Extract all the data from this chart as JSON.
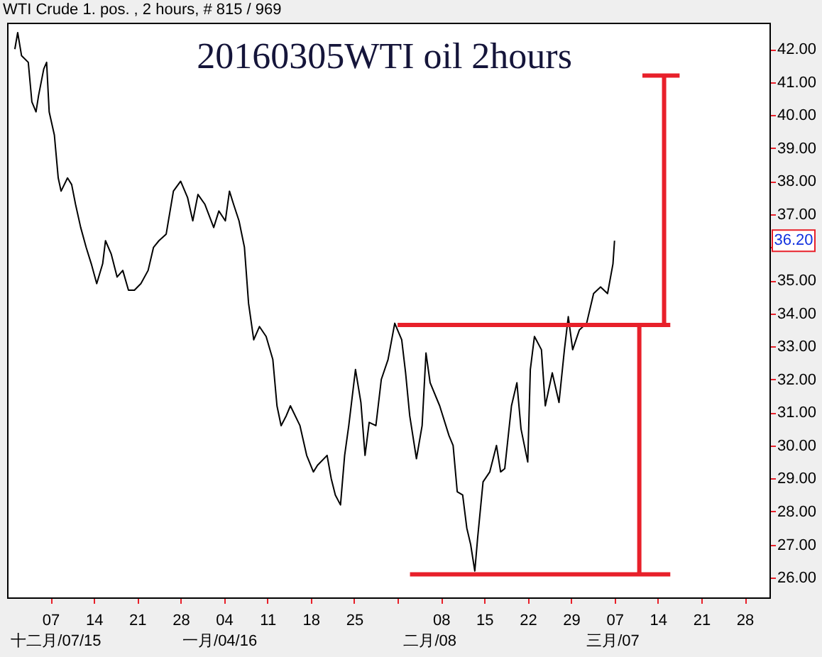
{
  "chart_data": {
    "type": "line",
    "title": "20160305WTI oil 2hours",
    "subtitle": "WTI Crude 1. pos. , 2 hours, # 815 / 969",
    "xlim": [
      "2015-11-30",
      "2016-04-01"
    ],
    "ylim": [
      25.4,
      42.8
    ],
    "xticks": [
      {
        "value": "2015-12-07",
        "label": "07"
      },
      {
        "value": "2015-12-14",
        "label": "14"
      },
      {
        "value": "2015-12-21",
        "label": "21"
      },
      {
        "value": "2015-12-28",
        "label": "28"
      },
      {
        "value": "2016-01-04",
        "label": "04"
      },
      {
        "value": "2016-01-11",
        "label": "11"
      },
      {
        "value": "2016-01-18",
        "label": "18"
      },
      {
        "value": "2016-01-25",
        "label": "25"
      },
      {
        "value": "2016-02-01",
        "label": null
      },
      {
        "value": "2016-02-08",
        "label": "08"
      },
      {
        "value": "2016-02-15",
        "label": "15"
      },
      {
        "value": "2016-02-22",
        "label": "22"
      },
      {
        "value": "2016-02-29",
        "label": "29"
      },
      {
        "value": "2016-03-07",
        "label": "07"
      },
      {
        "value": "2016-03-14",
        "label": "14"
      },
      {
        "value": "2016-03-21",
        "label": "21"
      },
      {
        "value": "2016-03-28",
        "label": "28"
      }
    ],
    "yticks": [
      {
        "value": 26,
        "label": "26.00"
      },
      {
        "value": 27,
        "label": "27.00"
      },
      {
        "value": 28,
        "label": "28.00"
      },
      {
        "value": 29,
        "label": "29.00"
      },
      {
        "value": 30,
        "label": "30.00"
      },
      {
        "value": 31,
        "label": "31.00"
      },
      {
        "value": 32,
        "label": "32.00"
      },
      {
        "value": 33,
        "label": "33.00"
      },
      {
        "value": 34,
        "label": "34.00"
      },
      {
        "value": 35,
        "label": "35.00"
      },
      {
        "value": 36,
        "label": null
      },
      {
        "value": 37,
        "label": "37.00"
      },
      {
        "value": 38,
        "label": "38.00"
      },
      {
        "value": 39,
        "label": "39.00"
      },
      {
        "value": 40,
        "label": "40.00"
      },
      {
        "value": 41,
        "label": "41.00"
      },
      {
        "value": 42,
        "label": "42.00"
      }
    ],
    "marker": "none",
    "line_style": "solid",
    "annotations": [
      "十二月/07/15",
      "一月/04/16",
      "二月/08",
      "三月/07",
      {
        "text": "36.20",
        "y": 36.2
      }
    ],
    "series": [
      {
        "color": "#000000",
        "x": [
          "2015-12-01T06:00",
          "2015-12-01T17:00",
          "2015-12-02T08:00",
          "2015-12-03T10:00",
          "2015-12-04T00:00",
          "2015-12-04T16:00",
          "2015-12-05T02:00",
          "2015-12-05T22:00",
          "2015-12-06T09:00",
          "2015-12-06T19:00",
          "2015-12-07T15:00",
          "2015-12-08T06:00",
          "2015-12-08T17:00",
          "2015-12-09T18:00",
          "2015-12-10T10:00",
          "2015-12-11T01:00",
          "2015-12-11T21:00",
          "2015-12-12T18:00",
          "2015-12-13T14:00",
          "2015-12-14T11:00",
          "2015-12-15T10:00",
          "2015-12-15T21:00",
          "2015-12-16T19:00",
          "2015-12-17T18:00",
          "2015-12-18T16:00",
          "2015-12-19T14:00",
          "2015-12-20T13:00",
          "2015-12-21T14:00",
          "2015-12-22T18:00",
          "2015-12-23T15:00",
          "2015-12-24T12:00",
          "2015-12-25T16:00",
          "2015-12-26T20:00",
          "2015-12-28T00:00",
          "2015-12-29T03:00",
          "2015-12-29T23:00",
          "2015-12-30T19:00",
          "2015-12-31T22:00",
          "2016-01-02T08:00",
          "2016-01-03T04:00",
          "2016-01-04T05:00",
          "2016-01-04T21:00",
          "2016-01-05T13:00",
          "2016-01-06T10:00",
          "2016-01-07T07:00",
          "2016-01-07T23:00",
          "2016-01-08T19:00",
          "2016-01-09T17:00",
          "2016-01-10T19:00",
          "2016-01-11T21:00",
          "2016-01-12T13:00",
          "2016-01-13T05:00",
          "2016-01-14T01:00",
          "2016-01-14T17:00",
          "2016-01-16T06:00",
          "2016-01-17T08:00",
          "2016-01-18T10:00",
          "2016-01-19T02:00",
          "2016-01-20T15:00",
          "2016-01-21T07:00",
          "2016-01-21T23:00",
          "2016-01-22T19:00",
          "2016-01-23T11:00",
          "2016-01-24T03:00",
          "2016-01-25T05:00",
          "2016-01-26T02:00",
          "2016-01-26T18:00",
          "2016-01-27T10:00",
          "2016-01-28T12:00",
          "2016-01-29T09:00",
          "2016-01-30T11:00",
          "2016-01-31T13:00",
          "2016-02-01T16:00",
          "2016-02-02T07:00",
          "2016-02-02T23:00",
          "2016-02-04T01:00",
          "2016-02-04T23:00",
          "2016-02-05T14:00",
          "2016-02-06T06:00",
          "2016-02-07T19:00",
          "2016-02-09T07:00",
          "2016-02-09T23:00",
          "2016-02-10T15:00",
          "2016-02-11T12:00",
          "2016-02-12T04:00",
          "2016-02-12T19:00",
          "2016-02-13T11:00",
          "2016-02-13T22:00",
          "2016-02-14T19:00",
          "2016-02-15T21:00",
          "2016-02-16T23:00",
          "2016-02-17T15:00",
          "2016-02-18T07:00",
          "2016-02-19T09:00",
          "2016-02-20T06:00",
          "2016-02-20T22:00",
          "2016-02-22T00:00",
          "2016-02-22T10:00",
          "2016-02-23T02:00",
          "2016-02-24T05:00",
          "2016-02-24T20:00",
          "2016-02-25T23:00",
          "2016-02-27T01:00",
          "2016-02-27T22:00",
          "2016-02-28T13:00",
          "2016-02-29T06:00",
          "2016-03-01T08:00",
          "2016-03-02T12:00",
          "2016-03-03T15:00",
          "2016-03-04T18:00",
          "2016-03-05T21:00",
          "2016-03-06T18:00",
          "2016-03-07T00:00"
        ],
        "values": [
          42.0,
          42.5,
          41.8,
          41.6,
          40.4,
          40.1,
          40.6,
          41.4,
          41.6,
          40.1,
          39.4,
          38.1,
          37.7,
          38.1,
          37.9,
          37.3,
          36.6,
          36.0,
          35.5,
          34.9,
          35.5,
          36.2,
          35.8,
          35.1,
          35.3,
          34.7,
          34.7,
          34.9,
          35.3,
          36.0,
          36.2,
          36.4,
          37.7,
          38.0,
          37.5,
          36.8,
          37.6,
          37.3,
          36.6,
          37.1,
          36.8,
          37.7,
          37.3,
          36.8,
          36.0,
          34.3,
          33.2,
          33.6,
          33.3,
          32.6,
          31.2,
          30.6,
          30.9,
          31.2,
          30.6,
          29.7,
          29.2,
          29.4,
          29.7,
          29.0,
          28.5,
          28.2,
          29.7,
          30.6,
          32.3,
          31.3,
          29.7,
          30.7,
          30.6,
          32.0,
          32.6,
          33.7,
          33.2,
          32.2,
          30.9,
          29.6,
          30.6,
          32.8,
          31.9,
          31.2,
          30.3,
          30.0,
          28.6,
          28.5,
          27.5,
          27.0,
          26.2,
          27.2,
          28.9,
          29.2,
          30.0,
          29.2,
          29.3,
          31.2,
          31.9,
          30.5,
          29.5,
          32.3,
          33.3,
          32.9,
          31.2,
          32.2,
          31.3,
          32.9,
          33.9,
          32.9,
          33.5,
          33.7,
          34.6,
          34.8,
          34.6,
          35.5,
          36.2
        ]
      },
      {
        "color": "#e8202a",
        "x": [
          "2016-02-01",
          "2016-03-16"
        ],
        "values": [
          33.65,
          33.65
        ]
      },
      {
        "color": "#e8202a",
        "x": [
          "2016-02-03",
          "2016-03-16"
        ],
        "values": [
          26.1,
          26.1
        ]
      },
      {
        "color": "#e8202a",
        "x": [
          "2016-03-11",
          "2016-03-11"
        ],
        "values": [
          26.1,
          33.65
        ]
      },
      {
        "color": "#e8202a",
        "x": [
          "2016-03-15",
          "2016-03-15"
        ],
        "values": [
          33.65,
          41.2
        ]
      },
      {
        "color": "#e8202a",
        "x": [
          "2016-03-11T12:00",
          "2016-03-17T12:00"
        ],
        "values": [
          41.2,
          41.2
        ]
      }
    ]
  }
}
